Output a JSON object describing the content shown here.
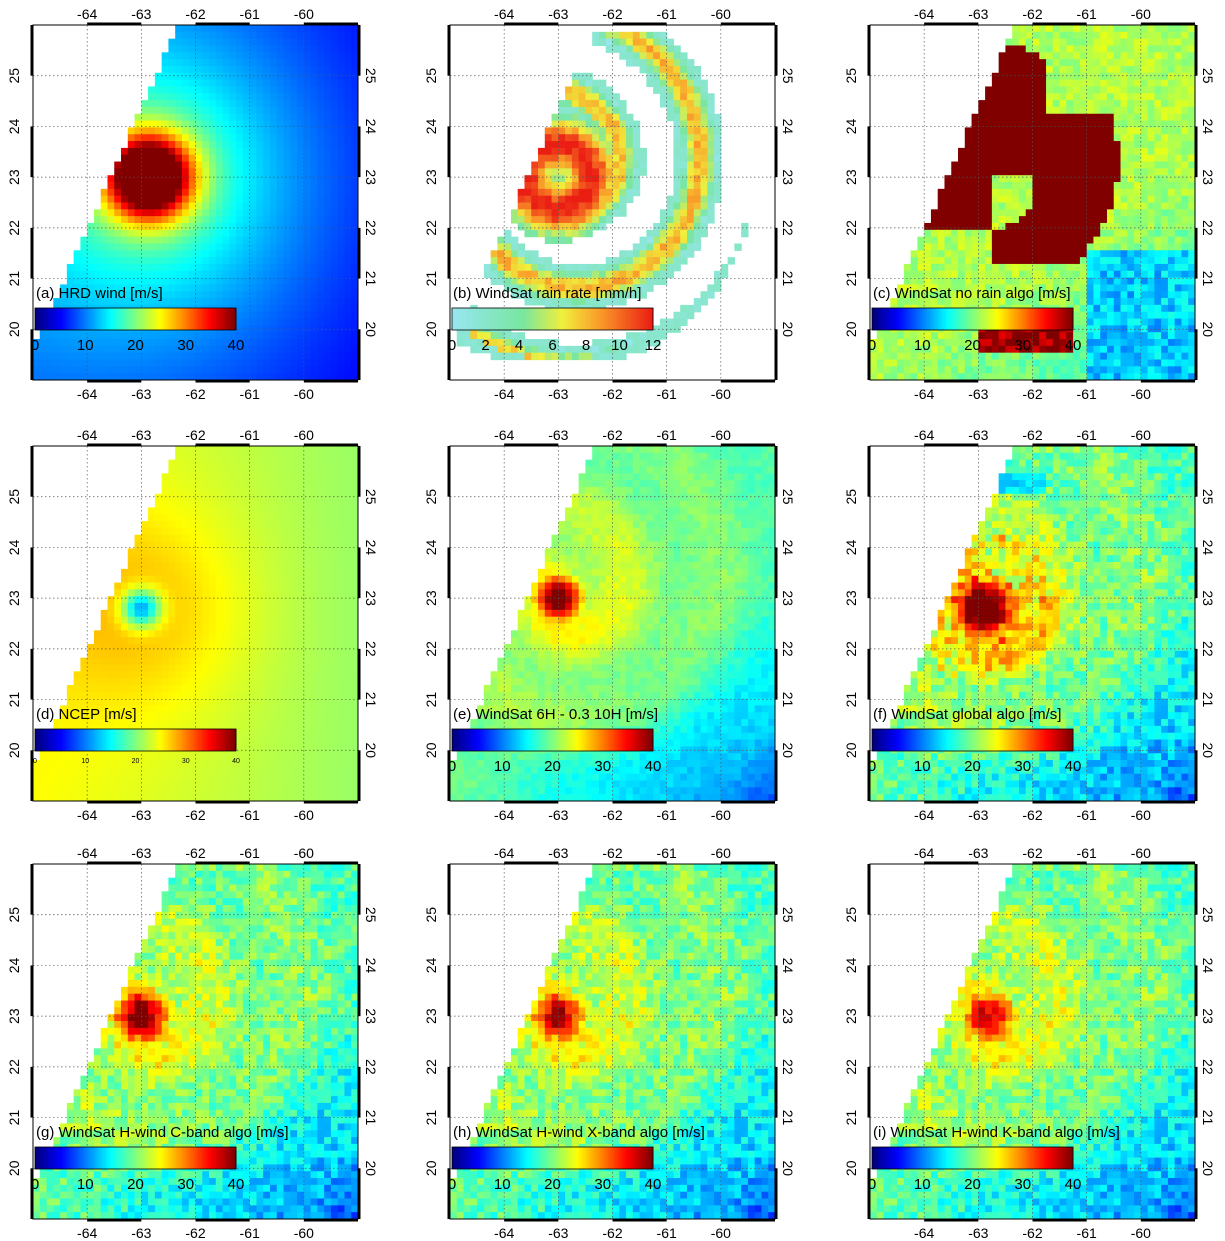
{
  "chart_data": {
    "type": "heatmap",
    "grid": "dotted",
    "lon_ticks": [
      -64,
      -63,
      -62,
      -61,
      -60
    ],
    "lat_ticks": [
      20,
      21,
      22,
      23,
      24,
      25
    ],
    "lon_range": [
      -65.0,
      -59.0
    ],
    "lat_range": [
      19.0,
      26.0
    ],
    "panels": [
      {
        "label": "(a) HRD wind [m/s]",
        "type": "heatmap",
        "field": "hrd",
        "colormap": "jet",
        "colorbar_ticks": [
          0,
          10,
          20,
          30,
          40
        ],
        "clim": [
          0,
          40
        ],
        "center": [
          -62.85,
          23.0
        ],
        "peak": 33
      },
      {
        "label": "(b) WindSat rain rate [mm/h]",
        "type": "heatmap",
        "field": "rain",
        "colormap": "rain",
        "colorbar_ticks": [
          0,
          2,
          4,
          6,
          8,
          10,
          12
        ],
        "clim": [
          0,
          12
        ],
        "center": [
          -63.0,
          23.0
        ],
        "peak": 12
      },
      {
        "label": "(c) WindSat no rain algo [m/s]",
        "type": "heatmap",
        "field": "norain",
        "colormap": "jet",
        "colorbar_ticks": [
          0,
          10,
          20,
          30,
          40
        ],
        "clim": [
          0,
          40
        ],
        "center": [
          -63.0,
          23.3
        ],
        "peak": 40
      },
      {
        "label": "(d) NCEP [m/s]",
        "type": "heatmap",
        "field": "ncep",
        "colormap": "jet",
        "colorbar_ticks": [
          0,
          10,
          20,
          30,
          40
        ],
        "clim": [
          0,
          40
        ],
        "center": [
          -63.0,
          22.8
        ],
        "peak": 20
      },
      {
        "label": "(e) WindSat 6H - 0.3 10H  [m/s]",
        "type": "heatmap",
        "field": "e",
        "colormap": "jet",
        "colorbar_ticks": [
          0,
          10,
          20,
          30,
          40
        ],
        "clim": [
          0,
          40
        ],
        "center": [
          -63.0,
          23.0
        ],
        "peak": 36
      },
      {
        "label": "(f) WindSat global algo [m/s]",
        "type": "heatmap",
        "field": "f",
        "colormap": "jet",
        "colorbar_ticks": [
          0,
          10,
          20,
          30,
          40
        ],
        "clim": [
          0,
          40
        ],
        "center": [
          -62.9,
          22.8
        ],
        "peak": 38
      },
      {
        "label": "(g) WindSat H-wind C-band algo [m/s]",
        "type": "heatmap",
        "field": "g",
        "colormap": "jet",
        "colorbar_ticks": [
          0,
          10,
          20,
          30,
          40
        ],
        "clim": [
          0,
          40
        ],
        "center": [
          -63.0,
          23.0
        ],
        "peak": 32
      },
      {
        "label": "(h) WindSat H-wind X-band algo [m/s]",
        "type": "heatmap",
        "field": "h",
        "colormap": "jet",
        "colorbar_ticks": [
          0,
          10,
          20,
          30,
          40
        ],
        "clim": [
          0,
          40
        ],
        "center": [
          -63.0,
          23.0
        ],
        "peak": 29
      },
      {
        "label": "(i) WindSat H-wind K-band algo [m/s]",
        "type": "heatmap",
        "field": "i",
        "colormap": "jet",
        "colorbar_ticks": [
          0,
          10,
          20,
          30,
          40
        ],
        "clim": [
          0,
          40
        ],
        "center": [
          -62.8,
          23.0
        ],
        "peak": 28
      }
    ]
  }
}
